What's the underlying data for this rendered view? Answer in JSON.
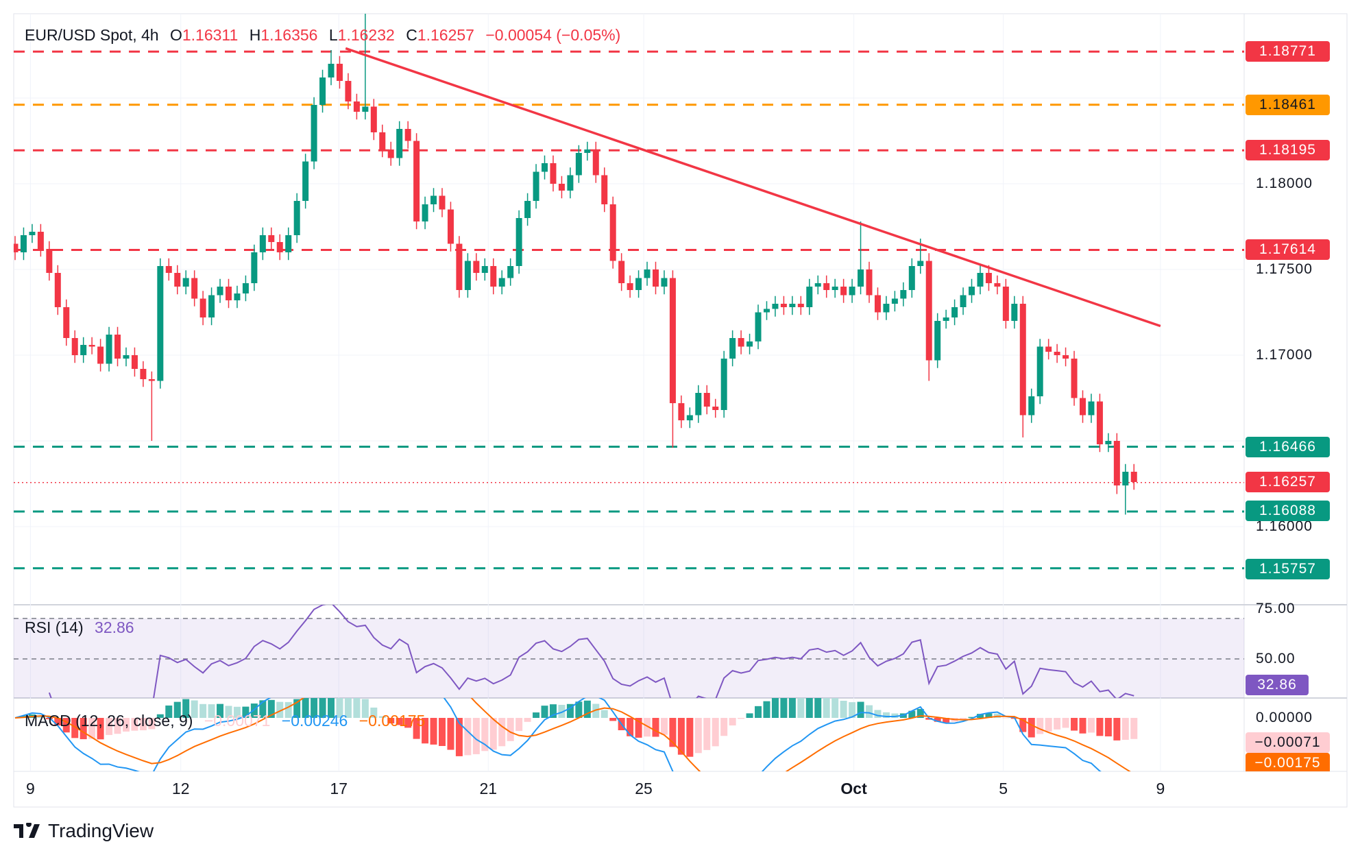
{
  "header": {
    "symbol": "EUR/USD Spot, 4h",
    "o_label": "O",
    "o": "1.16311",
    "h_label": "H",
    "h": "1.16356",
    "l_label": "L",
    "l": "1.16232",
    "c_label": "C",
    "c": "1.16257",
    "change": "−0.00054 (−0.05%)"
  },
  "colors": {
    "up": "#089981",
    "down": "#F23645",
    "orange": "#FF9800",
    "rsi": "#7E57C2",
    "macd": "#2196F3",
    "signal": "#FF6D00"
  },
  "chart_data": {
    "type": "candlestick",
    "title": "EUR/USD Spot, 4h",
    "ylim": [
      1.154,
      1.1945
    ],
    "y_ticks": [
      "1.18000",
      "1.17500",
      "1.17000",
      "1.16000"
    ],
    "x_ticks": [
      {
        "label": "9",
        "candle": 1.8
      },
      {
        "label": "12",
        "candle": 19.4
      },
      {
        "label": "17",
        "candle": 37.9
      },
      {
        "label": "21",
        "candle": 55.4
      },
      {
        "label": "25",
        "candle": 73.6
      },
      {
        "label": "Oct",
        "candle": 98.2
      },
      {
        "label": "5",
        "candle": 115.7
      },
      {
        "label": "9",
        "candle": 134.1
      }
    ],
    "close": [
      1.176,
      1.177,
      1.1772,
      1.1762,
      1.1748,
      1.1728,
      1.171,
      1.17,
      1.1706,
      1.1705,
      1.1695,
      1.1712,
      1.1698,
      1.17,
      1.1692,
      1.1686,
      1.1685,
      1.1752,
      1.1748,
      1.174,
      1.1745,
      1.1733,
      1.1722,
      1.1735,
      1.174,
      1.1732,
      1.1736,
      1.1742,
      1.176,
      1.177,
      1.1766,
      1.176,
      1.177,
      1.179,
      1.1813,
      1.1846,
      1.1862,
      1.187,
      1.186,
      1.1848,
      1.1842,
      1.1845,
      1.183,
      1.182,
      1.1815,
      1.1832,
      1.1825,
      1.1778,
      1.1788,
      1.1793,
      1.1785,
      1.1765,
      1.1738,
      1.1755,
      1.1748,
      1.1752,
      1.174,
      1.1745,
      1.1752,
      1.178,
      1.179,
      1.1807,
      1.1812,
      1.18,
      1.1796,
      1.1805,
      1.1818,
      1.182,
      1.1805,
      1.1788,
      1.1755,
      1.1742,
      1.1738,
      1.1745,
      1.175,
      1.174,
      1.1745,
      1.1672,
      1.1662,
      1.1665,
      1.1678,
      1.167,
      1.1668,
      1.1698,
      1.171,
      1.1705,
      1.1708,
      1.1725,
      1.1727,
      1.173,
      1.1728,
      1.173,
      1.1728,
      1.174,
      1.1742,
      1.1738,
      1.174,
      1.1735,
      1.174,
      1.175,
      1.1735,
      1.1725,
      1.173,
      1.1733,
      1.1738,
      1.1752,
      1.1755,
      1.1697,
      1.172,
      1.1722,
      1.1728,
      1.1735,
      1.174,
      1.1748,
      1.1742,
      1.174,
      1.172,
      1.173,
      1.1665,
      1.1676,
      1.1705,
      1.1702,
      1.17,
      1.1698,
      1.1675,
      1.1665,
      1.1673,
      1.1648,
      1.165,
      1.1624,
      1.1632,
      1.1626
    ],
    "notable_highs": {
      "37": 1.1878,
      "41": 1.192,
      "99": 1.1778,
      "106": 1.1768
    },
    "notable_lows": {
      "16": 1.165,
      "77": 1.1646,
      "107": 1.1685,
      "118": 1.1652,
      "129": 1.1619,
      "130": 1.1607
    },
    "levels": [
      {
        "value": "1.18771",
        "color": "#F23645",
        "style": "dashed"
      },
      {
        "value": "1.18461",
        "color": "#FF9800",
        "style": "dashed"
      },
      {
        "value": "1.18195",
        "color": "#F23645",
        "style": "dashed"
      },
      {
        "value": "1.17614",
        "color": "#F23645",
        "style": "dashed"
      },
      {
        "value": "1.16466",
        "color": "#089981",
        "style": "dashed"
      },
      {
        "value": "1.16257",
        "color": "#F23645",
        "style": "dotted"
      },
      {
        "value": "1.16088",
        "color": "#089981",
        "style": "dashed"
      },
      {
        "value": "1.15757",
        "color": "#089981",
        "style": "dashed"
      }
    ],
    "trendline": {
      "from": {
        "candle": 38.7,
        "price": 1.1879
      },
      "to": {
        "candle": 134.1,
        "price": 1.1717
      },
      "color": "#F23645"
    }
  },
  "rsi": {
    "label": "RSI (14)",
    "value": "32.86",
    "axis": [
      "75.00",
      "50.00"
    ],
    "upper": 70,
    "middle": 50,
    "lower": 30
  },
  "macd": {
    "label": "MACD (12, 26, close, 9)",
    "hist": "−0.00071",
    "macd": "−0.00246",
    "signal": "−0.00175",
    "axis": "0.00000"
  },
  "footer": {
    "brand": "TradingView"
  }
}
